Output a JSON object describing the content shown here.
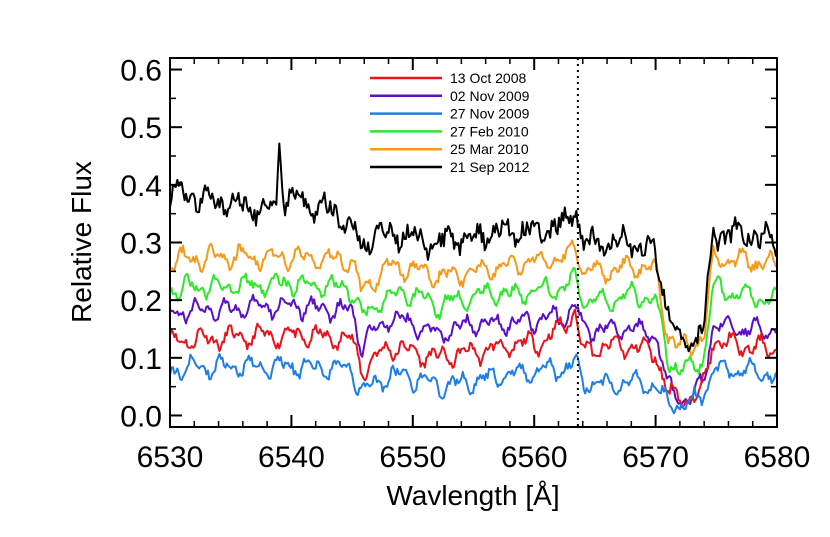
{
  "chart_data": {
    "type": "line",
    "xlabel": "Wavlength  [Å]",
    "ylabel": "Relative Flux",
    "xlim": [
      6530,
      6580
    ],
    "ylim": [
      -0.02,
      0.62
    ],
    "x_ticks": [
      6530,
      6540,
      6550,
      6560,
      6570,
      6580
    ],
    "x_tick_labels": [
      "6530",
      "6540",
      "6550",
      "6560",
      "6570",
      "6580"
    ],
    "y_ticks": [
      0.0,
      0.1,
      0.2,
      0.3,
      0.4,
      0.5,
      0.6
    ],
    "y_tick_labels": [
      "0.0",
      "0.1",
      "0.2",
      "0.3",
      "0.4",
      "0.5",
      "0.6"
    ],
    "vertical_markers": [
      6563.6,
      6580
    ],
    "legend_position": "top-center",
    "grid": false,
    "series": [
      {
        "name": "13 Oct 2008",
        "color": "#e8141b",
        "base": 0.13,
        "points": [
          [
            6530,
            0.13
          ],
          [
            6535,
            0.135
          ],
          [
            6540,
            0.14
          ],
          [
            6545,
            0.132
          ],
          [
            6545.8,
            0.08
          ],
          [
            6546.5,
            0.09
          ],
          [
            6548,
            0.12
          ],
          [
            6550,
            0.11
          ],
          [
            6552,
            0.1
          ],
          [
            6555,
            0.11
          ],
          [
            6558,
            0.12
          ],
          [
            6561,
            0.13
          ],
          [
            6562.5,
            0.16
          ],
          [
            6563.4,
            0.18
          ],
          [
            6564,
            0.11
          ],
          [
            6566,
            0.12
          ],
          [
            6568,
            0.12
          ],
          [
            6570,
            0.11
          ],
          [
            6571,
            0.04
          ],
          [
            6572,
            0.03
          ],
          [
            6573,
            0.03
          ],
          [
            6574,
            0.05
          ],
          [
            6574.7,
            0.13
          ],
          [
            6577,
            0.12
          ],
          [
            6580,
            0.115
          ]
        ]
      },
      {
        "name": "02 Nov 2009",
        "color": "#5a0fc8",
        "base": 0.18,
        "points": [
          [
            6530,
            0.18
          ],
          [
            6535,
            0.185
          ],
          [
            6540,
            0.19
          ],
          [
            6545,
            0.18
          ],
          [
            6545.8,
            0.12
          ],
          [
            6546.5,
            0.14
          ],
          [
            6548,
            0.17
          ],
          [
            6550,
            0.16
          ],
          [
            6552,
            0.14
          ],
          [
            6555,
            0.16
          ],
          [
            6558,
            0.16
          ],
          [
            6561,
            0.17
          ],
          [
            6562.5,
            0.17
          ],
          [
            6563.4,
            0.19
          ],
          [
            6564,
            0.15
          ],
          [
            6566,
            0.15
          ],
          [
            6568,
            0.15
          ],
          [
            6570,
            0.14
          ],
          [
            6571,
            0.05
          ],
          [
            6572,
            0.03
          ],
          [
            6573,
            0.03
          ],
          [
            6574,
            0.06
          ],
          [
            6574.7,
            0.16
          ],
          [
            6577,
            0.15
          ],
          [
            6580,
            0.15
          ]
        ]
      },
      {
        "name": "27 Nov 2009",
        "color": "#1e7fe6",
        "base": 0.08,
        "points": [
          [
            6530,
            0.08
          ],
          [
            6535,
            0.085
          ],
          [
            6540,
            0.085
          ],
          [
            6545,
            0.08
          ],
          [
            6545.8,
            0.04
          ],
          [
            6546.5,
            0.05
          ],
          [
            6548,
            0.07
          ],
          [
            6550,
            0.065
          ],
          [
            6552,
            0.05
          ],
          [
            6555,
            0.06
          ],
          [
            6558,
            0.07
          ],
          [
            6561,
            0.08
          ],
          [
            6562.5,
            0.08
          ],
          [
            6563.4,
            0.09
          ],
          [
            6564,
            0.06
          ],
          [
            6566,
            0.05
          ],
          [
            6568,
            0.06
          ],
          [
            6570,
            0.05
          ],
          [
            6571,
            0.02
          ],
          [
            6572,
            0.02
          ],
          [
            6573,
            0.02
          ],
          [
            6574,
            0.04
          ],
          [
            6574.7,
            0.08
          ],
          [
            6577,
            0.08
          ],
          [
            6580,
            0.07
          ]
        ]
      },
      {
        "name": "27 Feb 2010",
        "color": "#2ee82a",
        "base": 0.22,
        "points": [
          [
            6530,
            0.22
          ],
          [
            6535,
            0.225
          ],
          [
            6540,
            0.23
          ],
          [
            6545,
            0.22
          ],
          [
            6545.8,
            0.17
          ],
          [
            6546.5,
            0.18
          ],
          [
            6548,
            0.21
          ],
          [
            6550,
            0.21
          ],
          [
            6552,
            0.19
          ],
          [
            6555,
            0.21
          ],
          [
            6558,
            0.21
          ],
          [
            6561,
            0.22
          ],
          [
            6562.5,
            0.22
          ],
          [
            6563.4,
            0.24
          ],
          [
            6564,
            0.2
          ],
          [
            6566,
            0.2
          ],
          [
            6568,
            0.21
          ],
          [
            6570,
            0.2
          ],
          [
            6571,
            0.1
          ],
          [
            6572,
            0.08
          ],
          [
            6573,
            0.08
          ],
          [
            6574,
            0.1
          ],
          [
            6574.7,
            0.22
          ],
          [
            6577,
            0.21
          ],
          [
            6580,
            0.2
          ]
        ]
      },
      {
        "name": "25 Mar 2010",
        "color": "#f59a1a",
        "base": 0.27,
        "points": [
          [
            6530,
            0.27
          ],
          [
            6535,
            0.275
          ],
          [
            6540,
            0.275
          ],
          [
            6545,
            0.27
          ],
          [
            6545.8,
            0.21
          ],
          [
            6546.5,
            0.23
          ],
          [
            6548,
            0.26
          ],
          [
            6550,
            0.255
          ],
          [
            6552,
            0.24
          ],
          [
            6555,
            0.25
          ],
          [
            6558,
            0.26
          ],
          [
            6561,
            0.27
          ],
          [
            6562.5,
            0.27
          ],
          [
            6563.4,
            0.3
          ],
          [
            6564,
            0.25
          ],
          [
            6566,
            0.25
          ],
          [
            6568,
            0.26
          ],
          [
            6570,
            0.25
          ],
          [
            6571,
            0.14
          ],
          [
            6572,
            0.12
          ],
          [
            6573,
            0.12
          ],
          [
            6574,
            0.14
          ],
          [
            6574.7,
            0.27
          ],
          [
            6577,
            0.27
          ],
          [
            6580,
            0.26
          ]
        ]
      },
      {
        "name": "21 Sep 2012",
        "color": "#000000",
        "base": 0.37,
        "points": [
          [
            6530,
            0.39
          ],
          [
            6532,
            0.38
          ],
          [
            6535,
            0.37
          ],
          [
            6537,
            0.36
          ],
          [
            6538.8,
            0.37
          ],
          [
            6539,
            0.48
          ],
          [
            6539.3,
            0.38
          ],
          [
            6541,
            0.37
          ],
          [
            6543,
            0.36
          ],
          [
            6545,
            0.33
          ],
          [
            6545.8,
            0.28
          ],
          [
            6546.5,
            0.31
          ],
          [
            6548,
            0.32
          ],
          [
            6550,
            0.31
          ],
          [
            6552,
            0.3
          ],
          [
            6555,
            0.31
          ],
          [
            6558,
            0.32
          ],
          [
            6561,
            0.32
          ],
          [
            6562.5,
            0.33
          ],
          [
            6563.4,
            0.36
          ],
          [
            6564,
            0.3
          ],
          [
            6566,
            0.3
          ],
          [
            6568,
            0.3
          ],
          [
            6570,
            0.28
          ],
          [
            6571,
            0.18
          ],
          [
            6572,
            0.13
          ],
          [
            6573,
            0.13
          ],
          [
            6574,
            0.16
          ],
          [
            6574.7,
            0.31
          ],
          [
            6577,
            0.32
          ],
          [
            6580,
            0.3
          ]
        ]
      }
    ]
  }
}
